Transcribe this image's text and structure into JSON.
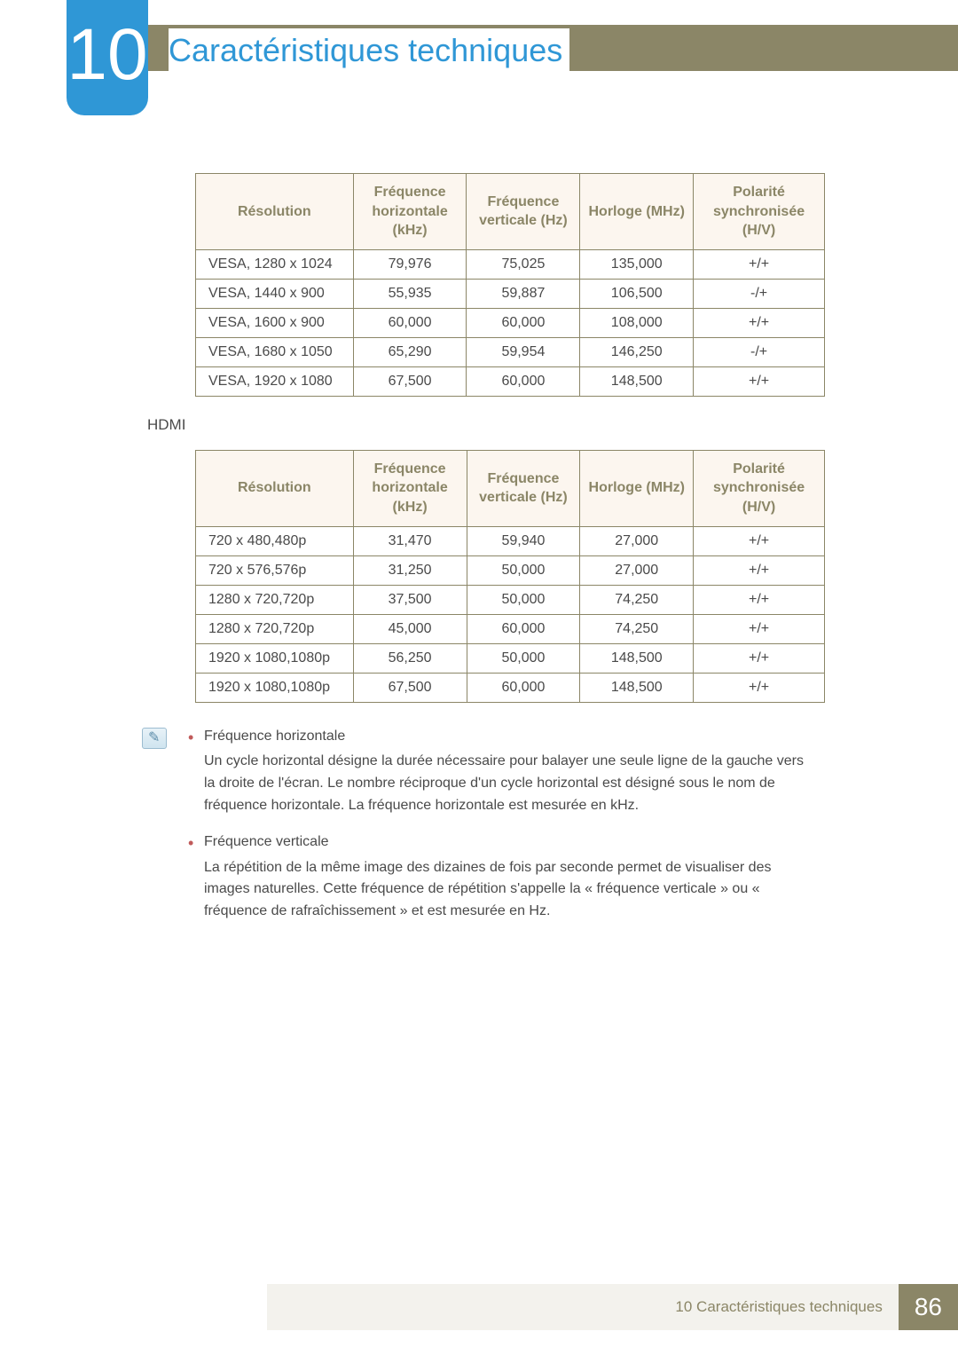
{
  "chapter": {
    "number": "10",
    "title": "Caractéristiques techniques"
  },
  "colors": {
    "accent_blue": "#2f97d6",
    "olive": "#8b8667",
    "header_bg": "#fcf6ef",
    "text": "#4a4a4a",
    "bullet": "#c05a5a"
  },
  "table_headers": {
    "resolution": "Résolution",
    "hfreq": "Fréquence horizontale (kHz)",
    "vfreq": "Fréquence verticale (Hz)",
    "clock": "Horloge (MHz)",
    "polarity": "Polarité synchronisée (H/V)"
  },
  "table1": {
    "rows": [
      [
        "VESA, 1280 x 1024",
        "79,976",
        "75,025",
        "135,000",
        "+/+"
      ],
      [
        "VESA, 1440 x 900",
        "55,935",
        "59,887",
        "106,500",
        "-/+"
      ],
      [
        "VESA, 1600 x 900",
        "60,000",
        "60,000",
        "108,000",
        "+/+"
      ],
      [
        "VESA, 1680 x 1050",
        "65,290",
        "59,954",
        "146,250",
        "-/+"
      ],
      [
        "VESA, 1920 x 1080",
        "67,500",
        "60,000",
        "148,500",
        "+/+"
      ]
    ]
  },
  "section_hdmi": "HDMI",
  "table2": {
    "rows": [
      [
        "720 x 480,480p",
        "31,470",
        "59,940",
        "27,000",
        "+/+"
      ],
      [
        "720 x 576,576p",
        "31,250",
        "50,000",
        "27,000",
        "+/+"
      ],
      [
        "1280 x 720,720p",
        "37,500",
        "50,000",
        "74,250",
        "+/+"
      ],
      [
        "1280 x 720,720p",
        "45,000",
        "60,000",
        "74,250",
        "+/+"
      ],
      [
        "1920 x 1080,1080p",
        "56,250",
        "50,000",
        "148,500",
        "+/+"
      ],
      [
        "1920 x 1080,1080p",
        "67,500",
        "60,000",
        "148,500",
        "+/+"
      ]
    ]
  },
  "notes": {
    "item1_term": "Fréquence horizontale",
    "item1_desc": "Un cycle horizontal désigne la durée nécessaire pour balayer une seule ligne de la gauche vers la droite de l'écran. Le nombre réciproque d'un cycle horizontal est désigné sous le nom de fréquence horizontale. La fréquence horizontale est mesurée en kHz.",
    "item2_term": "Fréquence verticale",
    "item2_desc": "La répétition de la même image des dizaines de fois par seconde permet de visualiser des images naturelles. Cette fréquence de répétition s'appelle la « fréquence verticale » ou « fréquence de rafraîchissement » et est mesurée en Hz."
  },
  "footer": {
    "text": "10 Caractéristiques techniques",
    "page": "86"
  },
  "column_widths": [
    "178px",
    "128px",
    "128px",
    "128px",
    "148px"
  ]
}
